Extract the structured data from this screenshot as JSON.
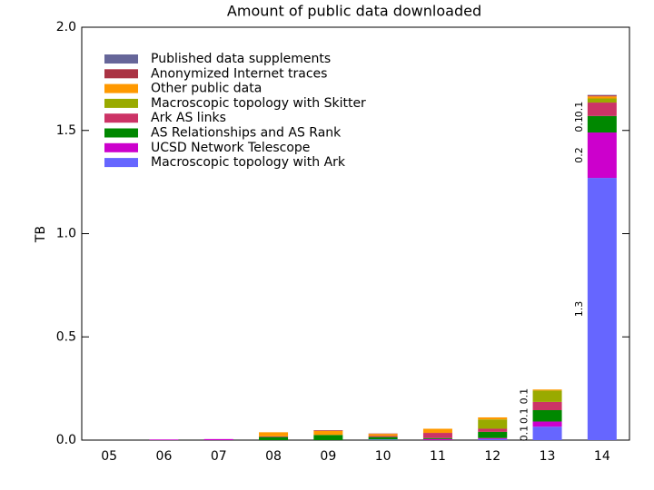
{
  "chart_data": {
    "type": "stacked_bar",
    "title": "Amount of public data downloaded",
    "y_label": "TB",
    "categories": [
      "05",
      "06",
      "07",
      "08",
      "09",
      "10",
      "11",
      "12",
      "13",
      "14"
    ],
    "ylim": [
      0,
      2
    ],
    "yticks": [
      {
        "value": 0,
        "label": "0.0"
      },
      {
        "value": 0.5,
        "label": "0.5"
      },
      {
        "value": 1,
        "label": "1.0"
      },
      {
        "value": 1.5,
        "label": "1.5"
      },
      {
        "value": 2,
        "label": "2.0"
      }
    ],
    "legend": "upper left",
    "series": [
      {
        "name": "Macroscopic topology with Ark",
        "color": "#6666ff",
        "values": [
          0,
          0,
          0,
          0,
          0,
          0.003,
          0,
          0.005,
          0.065,
          1.27
        ],
        "value_labels": [
          null,
          null,
          null,
          null,
          null,
          null,
          null,
          null,
          "0.1",
          "1.3"
        ]
      },
      {
        "name": "UCSD Network Telescope",
        "color": "#cc00cc",
        "values": [
          0,
          0.003,
          0.005,
          0,
          0,
          0,
          0.005,
          0.005,
          0.025,
          0.22
        ],
        "value_labels": [
          null,
          null,
          null,
          null,
          null,
          null,
          null,
          null,
          null,
          "0.2"
        ]
      },
      {
        "name": "AS Relationships and AS Rank",
        "color": "#008800",
        "values": [
          0,
          0,
          0,
          0.015,
          0.025,
          0.012,
          0.005,
          0.03,
          0.055,
          0.08
        ],
        "value_labels": [
          null,
          null,
          null,
          null,
          null,
          null,
          null,
          null,
          "0.1",
          "0.1"
        ]
      },
      {
        "name": "Ark AS links",
        "color": "#cc3366",
        "values": [
          0,
          0,
          0,
          0.003,
          0,
          0.005,
          0.025,
          0.015,
          0.04,
          0.065
        ],
        "value_labels": [
          null,
          null,
          null,
          null,
          null,
          null,
          null,
          null,
          null,
          "0.1"
        ]
      },
      {
        "name": "Macroscopic topology with Skitter",
        "color": "#99aa00",
        "values": [
          0,
          0,
          0,
          0,
          0,
          0,
          0,
          0.045,
          0.055,
          0.02
        ],
        "value_labels": [
          null,
          null,
          null,
          null,
          null,
          null,
          null,
          null,
          "0.1",
          null
        ]
      },
      {
        "name": "Other public data",
        "color": "#ff9900",
        "values": [
          0,
          0,
          0,
          0.02,
          0.02,
          0.01,
          0.02,
          0.01,
          0.005,
          0.01
        ]
      },
      {
        "name": "Anonymized Internet traces",
        "color": "#aa3344",
        "values": [
          0,
          0,
          0,
          0,
          0.003,
          0.002,
          0,
          0,
          0,
          0.005
        ]
      },
      {
        "name": "Published data supplements",
        "color": "#666699",
        "values": [
          0,
          0,
          0,
          0,
          0,
          0,
          0,
          0,
          0,
          0.002
        ]
      }
    ]
  }
}
